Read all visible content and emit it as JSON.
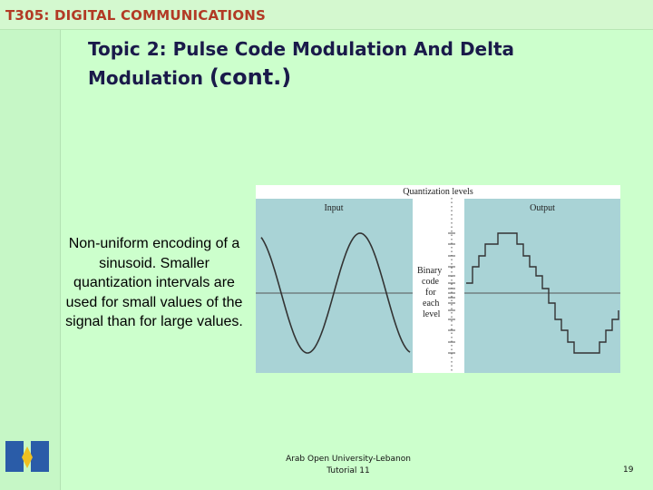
{
  "header": {
    "course": "T305: DIGITAL COMMUNICATIONS"
  },
  "title": {
    "lines": [
      "Topic 2: Pulse Code Modulation And Delta",
      "Modulation"
    ],
    "suffix": "(cont.)"
  },
  "caption": "Non-uniform encoding of a sinusoid. Smaller quantization intervals are used for small values of the signal than for large values.",
  "figure": {
    "top_label": "Quantization levels",
    "input_label": "Input",
    "output_label": "Output",
    "code_label": [
      "Binary",
      "code",
      "for",
      "each",
      "level"
    ]
  },
  "footer": {
    "institution": "Arab Open University-Lebanon",
    "tutorial": "Tutorial 11",
    "page": "19"
  }
}
